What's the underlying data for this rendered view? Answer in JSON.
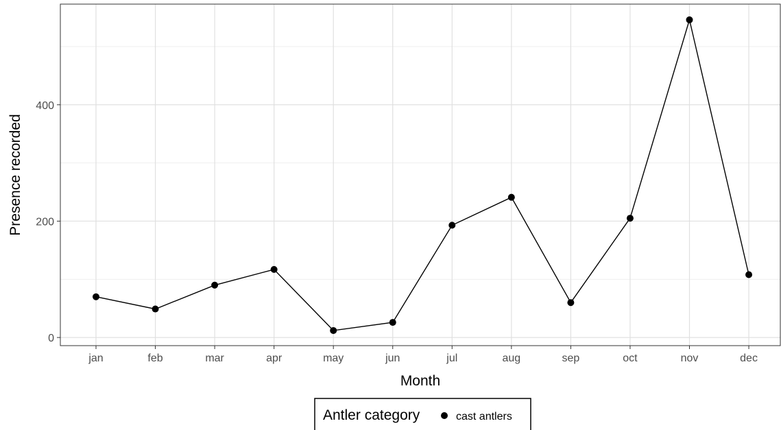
{
  "chart_data": {
    "type": "line",
    "xlabel": "Month",
    "ylabel": "Presence recorded",
    "categories": [
      "jan",
      "feb",
      "mar",
      "apr",
      "may",
      "jun",
      "jul",
      "aug",
      "sep",
      "oct",
      "nov",
      "dec"
    ],
    "series": [
      {
        "name": "cast antlers",
        "values": [
          70,
          49,
          90,
          117,
          12,
          26,
          193,
          241,
          60,
          205,
          546,
          108
        ],
        "color": "#000000"
      }
    ],
    "yticks": [
      0,
      200,
      400
    ],
    "ylim": [
      -14,
      573
    ],
    "grid": true,
    "legend": {
      "title": "Antler category",
      "position": "bottom"
    }
  }
}
